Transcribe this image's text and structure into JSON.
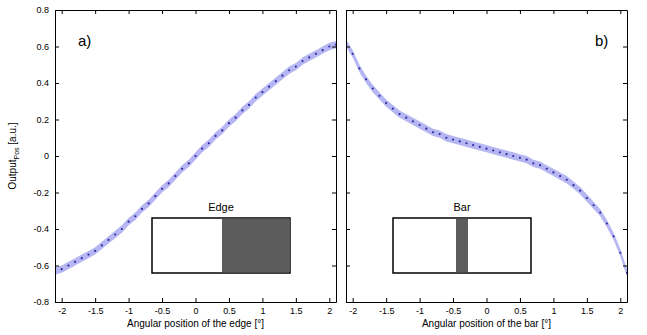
{
  "chart_data": [
    {
      "type": "scatter",
      "panel_label": "a)",
      "inset_label": "Edge",
      "xlabel": "Angular position of the edge [°]",
      "ylabel": {
        "text": "Output",
        "subscript": "Pos",
        "suffix": " [a.u.]"
      },
      "xlim": [
        -2.1,
        2.1
      ],
      "xticks": [
        -2,
        -1.5,
        -1,
        -0.5,
        0,
        0.5,
        1,
        1.5,
        2
      ],
      "ylim": [
        -0.8,
        0.8
      ],
      "yticks": [
        -0.8,
        -0.6,
        -0.4,
        -0.2,
        0,
        0.2,
        0.4,
        0.6,
        0.8
      ],
      "grid": false,
      "marker": "point",
      "x": [
        -2.1,
        -2,
        -1.9,
        -1.8,
        -1.7,
        -1.6,
        -1.5,
        -1.4,
        -1.3,
        -1.2,
        -1.1,
        -1,
        -0.9,
        -0.8,
        -0.7,
        -0.6,
        -0.5,
        -0.4,
        -0.3,
        -0.2,
        -0.1,
        0,
        0.1,
        0.2,
        0.3,
        0.4,
        0.5,
        0.6,
        0.7,
        0.8,
        0.9,
        1,
        1.1,
        1.2,
        1.3,
        1.4,
        1.5,
        1.6,
        1.7,
        1.8,
        1.9,
        2,
        2.1
      ],
      "series": [
        {
          "color": "#2c2ca0",
          "values": [
            -0.63,
            -0.62,
            -0.6,
            -0.58,
            -0.56,
            -0.54,
            -0.52,
            -0.49,
            -0.46,
            -0.43,
            -0.4,
            -0.36,
            -0.33,
            -0.29,
            -0.26,
            -0.22,
            -0.18,
            -0.15,
            -0.11,
            -0.07,
            -0.04,
            0,
            0.04,
            0.07,
            0.11,
            0.14,
            0.18,
            0.21,
            0.25,
            0.28,
            0.32,
            0.35,
            0.38,
            0.41,
            0.44,
            0.47,
            0.49,
            0.52,
            0.54,
            0.56,
            0.58,
            0.6,
            0.61
          ],
          "error": [
            0.02,
            0.02,
            0.02,
            0.02,
            0.02,
            0.02,
            0.02,
            0.02,
            0.02,
            0.02,
            0.02,
            0.02,
            0.02,
            0.02,
            0.02,
            0.02,
            0.02,
            0.02,
            0.02,
            0.02,
            0.02,
            0.02,
            0.02,
            0.02,
            0.02,
            0.02,
            0.02,
            0.02,
            0.02,
            0.02,
            0.02,
            0.02,
            0.02,
            0.02,
            0.02,
            0.02,
            0.02,
            0.02,
            0.02,
            0.02,
            0.02,
            0.02,
            0.02
          ]
        }
      ]
    },
    {
      "type": "scatter",
      "panel_label": "b)",
      "inset_label": "Bar",
      "xlabel": "Angular position of the bar [°]",
      "xlim": [
        -2.1,
        2.1
      ],
      "xticks": [
        -2,
        -1.5,
        -1,
        -0.5,
        0,
        0.5,
        1,
        1.5,
        2
      ],
      "ylim": [
        -0.8,
        0.8
      ],
      "yticks": [
        -0.8,
        -0.6,
        -0.4,
        -0.2,
        0,
        0.2,
        0.4,
        0.6,
        0.8
      ],
      "tick_labels": "x",
      "grid": false,
      "marker": "point",
      "x": [
        -2.1,
        -2,
        -1.9,
        -1.8,
        -1.7,
        -1.6,
        -1.5,
        -1.4,
        -1.3,
        -1.2,
        -1.1,
        -1,
        -0.9,
        -0.8,
        -0.7,
        -0.6,
        -0.5,
        -0.4,
        -0.3,
        -0.2,
        -0.1,
        0,
        0.1,
        0.2,
        0.3,
        0.4,
        0.5,
        0.6,
        0.7,
        0.8,
        0.9,
        1,
        1.1,
        1.2,
        1.3,
        1.4,
        1.5,
        1.6,
        1.7,
        1.8,
        1.9,
        2,
        2.1
      ],
      "series": [
        {
          "color": "#2c2ca0",
          "values": [
            0.62,
            0.56,
            0.48,
            0.42,
            0.37,
            0.33,
            0.29,
            0.26,
            0.23,
            0.21,
            0.19,
            0.17,
            0.15,
            0.13,
            0.12,
            0.1,
            0.09,
            0.08,
            0.07,
            0.06,
            0.05,
            0.04,
            0.03,
            0.02,
            0.01,
            0,
            -0.01,
            -0.02,
            -0.04,
            -0.05,
            -0.07,
            -0.09,
            -0.11,
            -0.13,
            -0.16,
            -0.19,
            -0.23,
            -0.27,
            -0.31,
            -0.37,
            -0.44,
            -0.53,
            -0.64
          ],
          "error": [
            0.02,
            0.02,
            0.02,
            0.02,
            0.02,
            0.02,
            0.02,
            0.02,
            0.02,
            0.02,
            0.02,
            0.02,
            0.02,
            0.02,
            0.02,
            0.02,
            0.02,
            0.02,
            0.02,
            0.02,
            0.02,
            0.02,
            0.02,
            0.02,
            0.02,
            0.02,
            0.02,
            0.02,
            0.02,
            0.02,
            0.02,
            0.02,
            0.02,
            0.02,
            0.02,
            0.02,
            0.02,
            0.02,
            0.02,
            0.02,
            0.02,
            0.02,
            0.02
          ]
        }
      ]
    }
  ]
}
